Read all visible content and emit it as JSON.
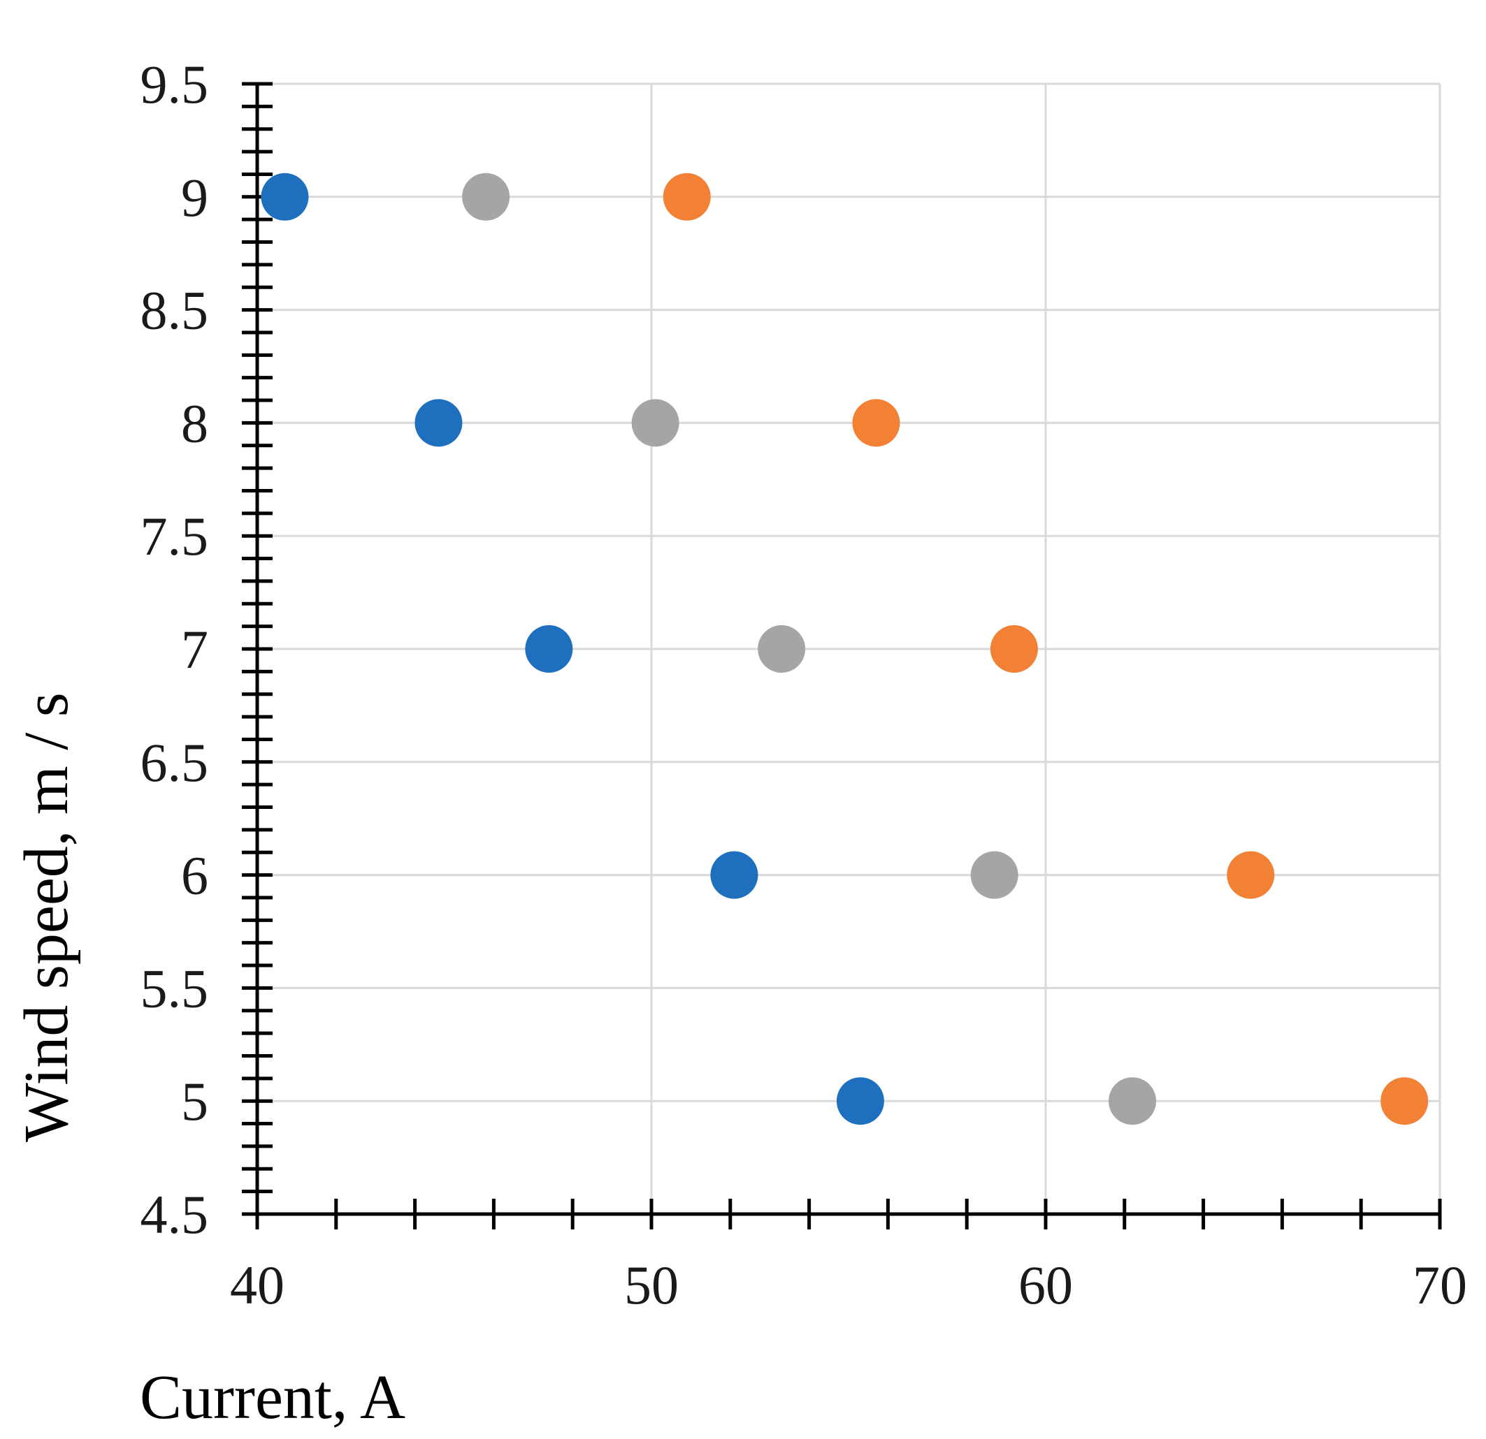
{
  "chart_data": {
    "type": "scatter",
    "title": "",
    "xlabel": "Current, A",
    "ylabel": "Wind speed, m / s",
    "xlim": [
      40,
      70
    ],
    "ylim": [
      4.5,
      9.5
    ],
    "x_ticks": [
      "40",
      "50",
      "60",
      "70"
    ],
    "y_ticks": [
      "4.5",
      "5",
      "5.5",
      "6",
      "6.5",
      "7",
      "7.5",
      "8",
      "8.5",
      "9",
      "9.5"
    ],
    "grid": true,
    "legend": "none",
    "series": [
      {
        "color": "#1f6fbf",
        "points": [
          [
            40.7,
            9
          ],
          [
            44.6,
            8
          ],
          [
            47.4,
            7
          ],
          [
            52.1,
            6
          ],
          [
            55.3,
            5
          ]
        ]
      },
      {
        "color": "#a5a5a5",
        "points": [
          [
            45.8,
            9
          ],
          [
            50.1,
            8
          ],
          [
            53.3,
            7
          ],
          [
            58.7,
            6
          ],
          [
            62.2,
            5
          ]
        ]
      },
      {
        "color": "#f28035",
        "points": [
          [
            50.9,
            9
          ],
          [
            55.7,
            8
          ],
          [
            59.2,
            7
          ],
          [
            65.2,
            6
          ],
          [
            69.1,
            5
          ]
        ]
      }
    ]
  }
}
